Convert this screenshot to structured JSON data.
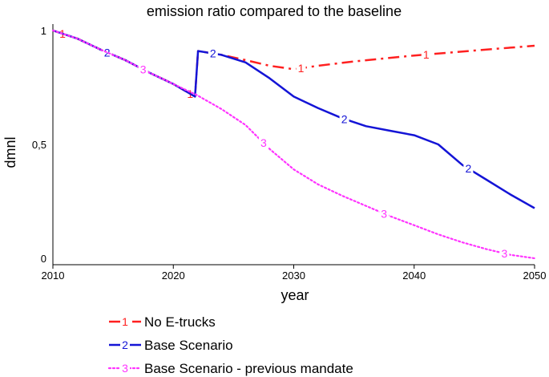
{
  "chart_data": {
    "type": "line",
    "title": "emission ratio compared to the baseline",
    "xlabel": "year",
    "ylabel": "dmnl",
    "xlim": [
      2010,
      2050
    ],
    "ylim": [
      0,
      1
    ],
    "x_ticks": [
      {
        "value": 2010,
        "label": "2010"
      },
      {
        "value": 2020,
        "label": "2020"
      },
      {
        "value": 2030,
        "label": "2030"
      },
      {
        "value": 2040,
        "label": "2040"
      },
      {
        "value": 2050,
        "label": "2050"
      }
    ],
    "y_ticks": [
      {
        "value": 0,
        "label": "0"
      },
      {
        "value": 0.5,
        "label": "0,5"
      },
      {
        "value": 1,
        "label": "1"
      }
    ],
    "grid": false,
    "legend_position": "bottom-left",
    "series": [
      {
        "name": "No E-trucks",
        "marker": "1",
        "color": "#ff2020",
        "dash": "dash-dot",
        "points": [
          [
            2010,
            1.0
          ],
          [
            2012,
            0.965
          ],
          [
            2014,
            0.915
          ],
          [
            2016,
            0.87
          ],
          [
            2018,
            0.815
          ],
          [
            2020,
            0.765
          ],
          [
            2021.8,
            0.71
          ],
          [
            2022.05,
            0.91
          ],
          [
            2024,
            0.893
          ],
          [
            2026,
            0.87
          ],
          [
            2028,
            0.845
          ],
          [
            2030,
            0.83
          ],
          [
            2032,
            0.845
          ],
          [
            2035,
            0.864
          ],
          [
            2040,
            0.89
          ],
          [
            2045,
            0.912
          ],
          [
            2050,
            0.933
          ]
        ],
        "markers_at": [
          2010.8,
          2021.4,
          2030.6,
          2041
        ]
      },
      {
        "name": "Base Scenario",
        "marker": "2",
        "color": "#1414d6",
        "dash": "solid",
        "points": [
          [
            2010,
            1.0
          ],
          [
            2012,
            0.965
          ],
          [
            2014,
            0.915
          ],
          [
            2016,
            0.87
          ],
          [
            2018,
            0.815
          ],
          [
            2020,
            0.765
          ],
          [
            2021.8,
            0.71
          ],
          [
            2022.05,
            0.91
          ],
          [
            2024,
            0.893
          ],
          [
            2026,
            0.86
          ],
          [
            2028,
            0.79
          ],
          [
            2030,
            0.71
          ],
          [
            2032,
            0.66
          ],
          [
            2034,
            0.615
          ],
          [
            2036,
            0.58
          ],
          [
            2038,
            0.56
          ],
          [
            2040,
            0.54
          ],
          [
            2042,
            0.5
          ],
          [
            2044,
            0.41
          ],
          [
            2046,
            0.345
          ],
          [
            2048,
            0.28
          ],
          [
            2050,
            0.22
          ]
        ],
        "markers_at": [
          2014.5,
          2023.3,
          2034.2,
          2044.5
        ]
      },
      {
        "name": "Base Scenario - previous mandate",
        "marker": "3",
        "color": "#ff33ff",
        "dash": "dotted",
        "points": [
          [
            2010,
            1.0
          ],
          [
            2012,
            0.965
          ],
          [
            2014,
            0.915
          ],
          [
            2016,
            0.87
          ],
          [
            2018,
            0.815
          ],
          [
            2020,
            0.765
          ],
          [
            2022,
            0.715
          ],
          [
            2024,
            0.655
          ],
          [
            2026,
            0.585
          ],
          [
            2028,
            0.48
          ],
          [
            2030,
            0.39
          ],
          [
            2032,
            0.325
          ],
          [
            2034,
            0.275
          ],
          [
            2036,
            0.23
          ],
          [
            2038,
            0.185
          ],
          [
            2040,
            0.145
          ],
          [
            2042,
            0.105
          ],
          [
            2044,
            0.07
          ],
          [
            2046,
            0.04
          ],
          [
            2048,
            0.015
          ],
          [
            2050,
            0.0
          ]
        ],
        "markers_at": [
          2017.5,
          2027.5,
          2037.5,
          2047.5
        ]
      }
    ]
  }
}
